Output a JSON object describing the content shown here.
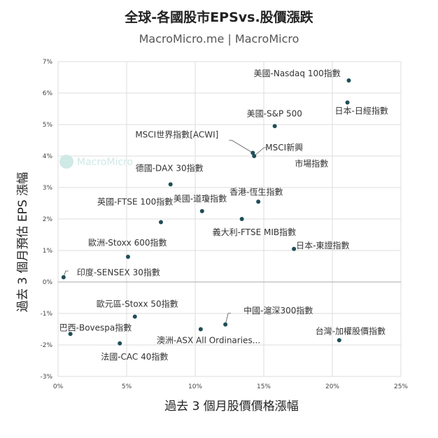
{
  "chart_data": {
    "type": "scatter",
    "title": "全球-各國股市EPSvs.股價漲跌",
    "subtitle": "MacroMicro.me | MacroMicro",
    "watermark": "MacroMicro",
    "xlabel": "過去 3 個月股價價格漲幅",
    "ylabel": "過去 3 個月預估 EPS 漲幅",
    "xlim": [
      0,
      25
    ],
    "ylim": [
      -3,
      7
    ],
    "x_ticks": [
      "0%",
      "5%",
      "10%",
      "15%",
      "20%",
      "25%"
    ],
    "y_ticks": [
      "-3%",
      "-2%",
      "-1%",
      "0%",
      "1%",
      "2%",
      "3%",
      "4%",
      "5%",
      "6%",
      "7%"
    ],
    "grid": true,
    "point_color": "#1f4e57",
    "points": [
      {
        "label": "美國-Nasdaq 100指數",
        "x": 21.2,
        "y": 6.4
      },
      {
        "label": "日本-日經指數",
        "x": 21.1,
        "y": 5.7
      },
      {
        "label": "美國-S&P 500",
        "x": 15.8,
        "y": 4.95
      },
      {
        "label": "MSCI世界指數[ACWI]",
        "x": 14.2,
        "y": 4.1
      },
      {
        "label": "MSCI新興市場指數",
        "x": 14.3,
        "y": 4.0
      },
      {
        "label": "德國-DAX 30指數",
        "x": 8.2,
        "y": 3.1
      },
      {
        "label": "香港-恆生指數",
        "x": 14.6,
        "y": 2.55
      },
      {
        "label": "美國-道瓊指數",
        "x": 10.5,
        "y": 2.25
      },
      {
        "label": "英國-FTSE 100指數",
        "x": 7.5,
        "y": 1.9
      },
      {
        "label": "義大利-FTSE MIB指數",
        "x": 13.4,
        "y": 2.0
      },
      {
        "label": "歐洲-Stoxx 600指數",
        "x": 5.1,
        "y": 0.8
      },
      {
        "label": "日本-東證指數",
        "x": 17.2,
        "y": 1.05
      },
      {
        "label": "印度-SENSEX 30指數",
        "x": 0.4,
        "y": 0.15
      },
      {
        "label": "歐元區-Stoxx 50指數",
        "x": 5.6,
        "y": -1.1
      },
      {
        "label": "中國-滬深300指數",
        "x": 12.2,
        "y": -1.35
      },
      {
        "label": "巴西-Bovespa指數",
        "x": 0.9,
        "y": -1.65
      },
      {
        "label": "澳洲-ASX All Ordinaries...",
        "x": 10.4,
        "y": -1.5
      },
      {
        "label": "台灣-加權股價指數",
        "x": 20.5,
        "y": -1.85
      },
      {
        "label": "法國-CAC 40指數",
        "x": 4.5,
        "y": -1.95
      }
    ]
  }
}
